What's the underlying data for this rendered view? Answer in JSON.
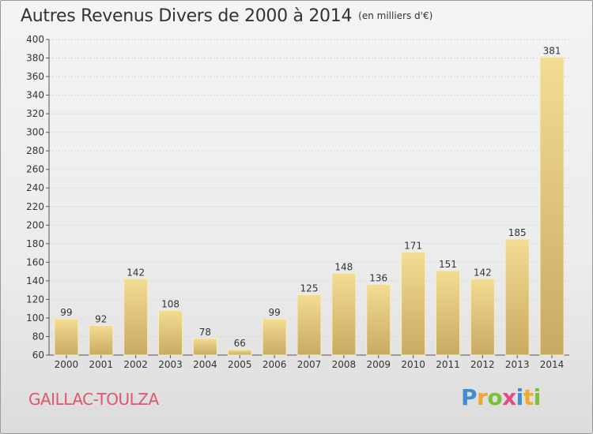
{
  "title": "Autres Revenus Divers de 2000 à 2014",
  "unit_note": "(en milliers d'€)",
  "commune": "GAILLAC-TOULZA",
  "logo": {
    "letters": [
      "P",
      "r",
      "o",
      "x",
      "i",
      "t",
      "i"
    ],
    "colors": [
      "#3d8fd1",
      "#f0a92d",
      "#7cbf3a",
      "#e44b8a",
      "#3d8fd1",
      "#f0a92d",
      "#7cbf3a"
    ]
  },
  "colors": {
    "bar_light": "#f3dc93",
    "bar_dark": "#c9aa62",
    "grid": "#d9d9d9",
    "axis": "#555555",
    "commune_text": "#e0566a"
  },
  "chart_data": {
    "type": "bar",
    "categories": [
      "2000",
      "2001",
      "2002",
      "2003",
      "2004",
      "2005",
      "2006",
      "2007",
      "2008",
      "2009",
      "2010",
      "2011",
      "2012",
      "2013",
      "2014"
    ],
    "values": [
      99,
      92,
      142,
      108,
      78,
      66,
      99,
      125,
      148,
      136,
      171,
      151,
      142,
      185,
      381
    ],
    "ylim": [
      60,
      400
    ],
    "yticks": [
      60,
      80,
      100,
      120,
      140,
      160,
      180,
      200,
      220,
      240,
      260,
      280,
      300,
      320,
      340,
      360,
      380,
      400
    ],
    "grid": true,
    "xlabel": "",
    "ylabel": ""
  }
}
